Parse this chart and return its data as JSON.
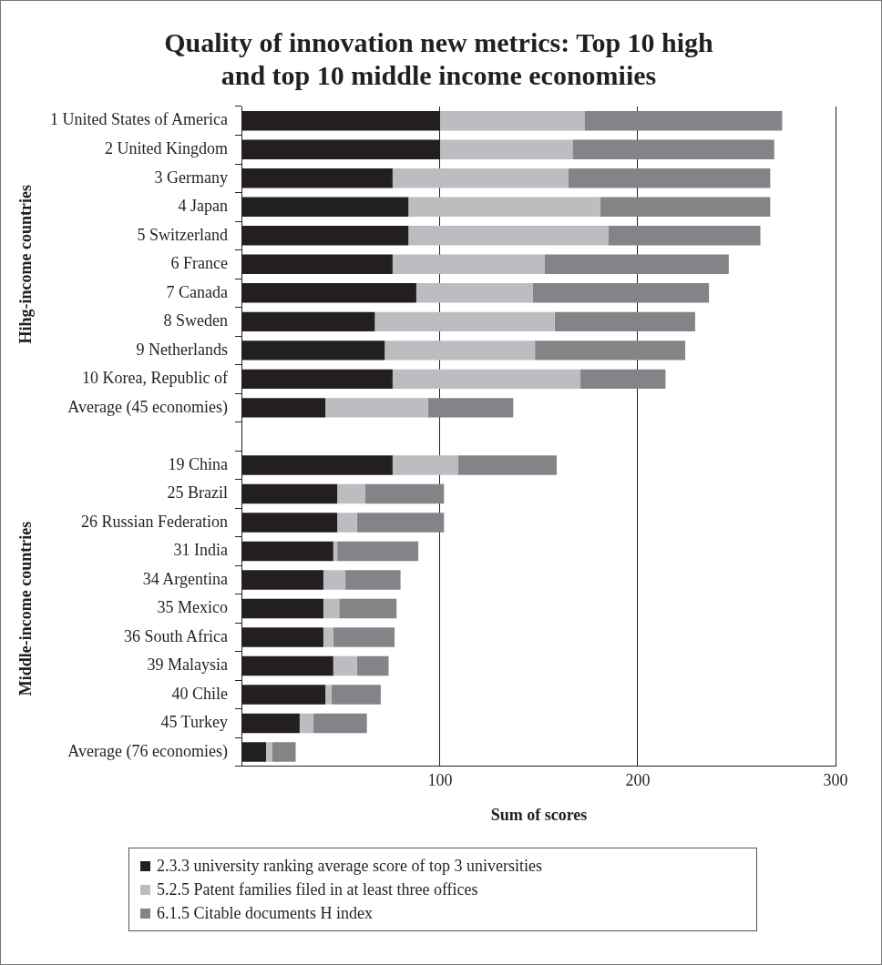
{
  "chart_data": {
    "type": "bar",
    "orientation": "horizontal",
    "stacked": true,
    "title": "Quality of innovation new metrics: Top 10 high and top 10 middle income economiies",
    "xlabel": "Sum of scores",
    "categories": [
      "1 United States of America",
      "2 United Kingdom",
      "3 Germany",
      "4 Japan",
      "5 Switzerland",
      "6 France",
      "7 Canada",
      "8 Sweden",
      "9 Netherlands",
      "10 Korea, Republic of",
      "Average (45 economies)",
      null,
      "19 China",
      "25 Brazil",
      "26 Russian Federation",
      "31 India",
      "34 Argentina",
      "35 Mexico",
      "36 South Africa",
      "39 Malaysia",
      "40 Chile",
      "45 Turkey",
      "Average (76 economies)"
    ],
    "series": [
      {
        "name": "2.3.3 university ranking average score of top 3 universities",
        "color": "#231f20",
        "values": [
          100,
          100,
          76,
          84,
          84,
          76,
          88,
          67,
          72,
          76,
          42,
          null,
          76,
          48,
          48,
          46,
          41,
          41,
          41,
          46,
          42,
          29,
          12
        ]
      },
      {
        "name": "5.2.5 Patent families filed in at least three offices",
        "color": "#bcbdc0",
        "values": [
          73,
          67,
          89,
          97,
          101,
          77,
          59,
          91,
          76,
          95,
          52,
          null,
          33,
          14,
          10,
          2,
          11,
          8,
          5,
          12,
          3,
          7,
          3
        ]
      },
      {
        "name": "6.1.5 Citable documents H index",
        "color": "#838487",
        "values": [
          100,
          102,
          102,
          86,
          77,
          93,
          89,
          71,
          76,
          43,
          43,
          null,
          50,
          40,
          44,
          41,
          28,
          29,
          31,
          16,
          25,
          27,
          12
        ]
      }
    ],
    "xlim": [
      0,
      300
    ],
    "xticks": [
      100,
      200,
      300
    ],
    "grid": "x",
    "legend": "bottom",
    "annotations": [
      "Hihg-income countries",
      "Middle-income countries"
    ]
  }
}
